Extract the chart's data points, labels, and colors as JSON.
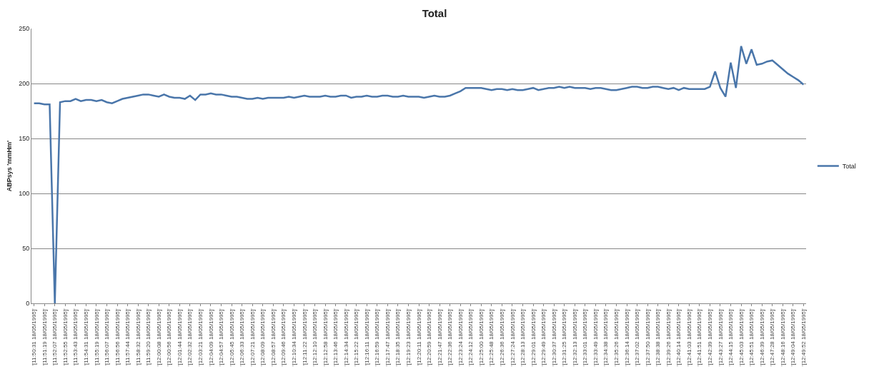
{
  "chart_data": {
    "type": "line",
    "title": "Total",
    "ylabel": "ABPsys 'mmHm'",
    "categories": [
      "'[11:50:31 18/05/1995]'",
      null,
      "'[11:51:19 18/05/1995]'",
      null,
      "'[11:52:07 18/05/1995]'",
      null,
      "'[11:52:55 18/05/1995]'",
      null,
      "'[11:53:43 18/05/1995]'",
      null,
      "'[11:54:31 18/05/1995]'",
      null,
      "'[11:55:19 18/05/1995]'",
      null,
      "'[11:56:07 18/05/1995]'",
      null,
      "'[11:56:56 18/05/1995]'",
      null,
      "'[11:57:44 18/05/1995]'",
      null,
      "'[11:58:32 18/05/1995]'",
      null,
      "'[11:59:20 18/05/1995]'",
      null,
      "'[12:00:08 18/05/1995]'",
      null,
      "'[12:00:56 18/05/1995]'",
      null,
      "'[12:01:44 18/05/1995]'",
      null,
      "'[12:02:32 18/05/1995]'",
      null,
      "'[12:03:21 18/05/1995]'",
      null,
      "'[12:04:09 18/05/1995]'",
      null,
      "'[12:04:57 18/05/1995]'",
      null,
      "'[12:05:45 18/05/1995]'",
      null,
      "'[12:06:33 18/05/1995]'",
      null,
      "'[12:07:21 18/05/1995]'",
      null,
      "'[12:08:09 18/05/1995]'",
      null,
      "'[12:08:57 18/05/1995]'",
      null,
      "'[12:09:46 18/05/1995]'",
      null,
      "'[12:10:34 18/05/1995]'",
      null,
      "'[12:11:22 18/05/1995]'",
      null,
      "'[12:12:10 18/05/1995]'",
      null,
      "'[12:12:58 18/05/1995]'",
      null,
      "'[12:13:46 18/05/1995]'",
      null,
      "'[12:14:34 18/05/1995]'",
      null,
      "'[12:15:22 18/05/1995]'",
      null,
      "'[12:16:11 18/05/1995]'",
      null,
      "'[12:16:59 18/05/1995]'",
      null,
      "'[12:17:47 18/05/1995]'",
      null,
      "'[12:18:35 18/05/1995]'",
      null,
      "'[12:19:23 18/05/1995]'",
      null,
      "'[12:20:11 18/05/1995]'",
      null,
      "'[12:20:59 18/05/1995]'",
      null,
      "'[12:21:47 18/05/1995]'",
      null,
      "'[12:22:36 18/05/1995]'",
      null,
      "'[12:23:24 18/05/1995]'",
      null,
      "'[12:24:12 18/05/1995]'",
      null,
      "'[12:25:00 18/05/1995]'",
      null,
      "'[12:25:48 18/05/1995]'",
      null,
      "'[12:26:36 18/05/1995]'",
      null,
      "'[12:27:24 18/05/1995]'",
      null,
      "'[12:28:13 18/05/1995]'",
      null,
      "'[12:29:01 18/05/1995]'",
      null,
      "'[12:29:49 18/05/1995]'",
      null,
      "'[12:30:37 18/05/1995]'",
      null,
      "'[12:31:25 18/05/1995]'",
      null,
      "'[12:32:13 18/05/1995]'",
      null,
      "'[12:33:01 18/05/1995]'",
      null,
      "'[12:33:49 18/05/1995]'",
      null,
      "'[12:34:38 18/05/1995]'",
      null,
      "'[12:35:26 18/05/1995]'",
      null,
      "'[12:36:14 18/05/1995]'",
      null,
      "'[12:37:02 18/05/1995]'",
      null,
      "'[12:37:50 18/05/1995]'",
      null,
      "'[12:38:38 18/05/1995]'",
      null,
      "'[12:39:26 18/05/1995]'",
      null,
      "'[12:40:14 18/05/1995]'",
      null,
      "'[12:41:03 18/05/1995]'",
      null,
      "'[12:41:51 18/05/1995]'",
      null,
      "'[12:42:39 18/05/1995]'",
      null,
      "'[12:43:27 18/05/1995]'",
      null,
      "'[12:44:15 18/05/1995]'",
      null,
      "'[12:45:03 18/05/1995]'",
      null,
      "'[12:45:51 18/05/1995]'",
      null,
      "'[12:46:39 18/05/1995]'",
      null,
      "'[12:47:28 18/05/1995]'",
      null,
      "'[12:48:16 18/05/1995]'",
      null,
      "'[12:49:04 18/05/1995]'",
      null,
      "'[12:49:52 18/05/1995]'"
    ],
    "series": [
      {
        "name": "Total",
        "color": "#4a76aa",
        "values": [
          182,
          182,
          181,
          181,
          0,
          183,
          184,
          184,
          186,
          184,
          185,
          185,
          184,
          185,
          183,
          182,
          184,
          186,
          187,
          188,
          189,
          190,
          190,
          189,
          188,
          190,
          188,
          187,
          187,
          186,
          189,
          185,
          190,
          190,
          191,
          190,
          190,
          189,
          188,
          188,
          187,
          186,
          186,
          187,
          186,
          187,
          187,
          187,
          187,
          188,
          187,
          188,
          189,
          188,
          188,
          188,
          189,
          188,
          188,
          189,
          189,
          187,
          188,
          188,
          189,
          188,
          188,
          189,
          189,
          188,
          188,
          189,
          188,
          188,
          188,
          187,
          188,
          189,
          188,
          188,
          189,
          191,
          193,
          196,
          196,
          196,
          196,
          195,
          194,
          195,
          195,
          194,
          195,
          194,
          194,
          195,
          196,
          194,
          195,
          196,
          196,
          197,
          196,
          197,
          196,
          196,
          196,
          195,
          196,
          196,
          195,
          194,
          194,
          195,
          196,
          197,
          197,
          196,
          196,
          197,
          197,
          196,
          195,
          196,
          194,
          196,
          195,
          195,
          195,
          195,
          197,
          211,
          196,
          188,
          219,
          196,
          234,
          218,
          231,
          217,
          218,
          220,
          221,
          217,
          213,
          209,
          206,
          203,
          199
        ]
      }
    ],
    "ylim": [
      0,
      250
    ],
    "yticks": [
      0,
      50,
      100,
      150,
      200,
      250
    ],
    "grid": "y",
    "legend": "right",
    "marker": "none",
    "line_style": "solid"
  }
}
